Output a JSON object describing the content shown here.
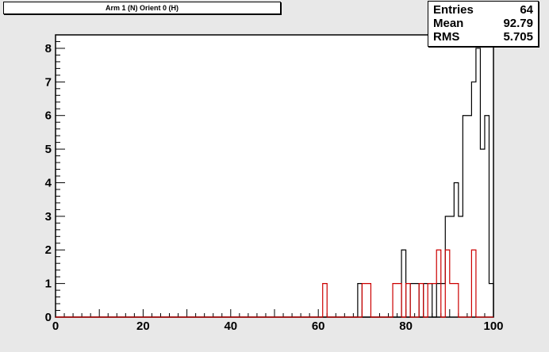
{
  "chart_data": {
    "type": "bar",
    "title": "Arm 1 (N) Orient 0 (H)",
    "xlim": [
      0,
      100
    ],
    "ylim": [
      0,
      8.4
    ],
    "x_ticks": [
      "0",
      "20",
      "40",
      "60",
      "80",
      "100"
    ],
    "y_ticks": [
      "0",
      "1",
      "2",
      "3",
      "4",
      "5",
      "6",
      "7",
      "8"
    ],
    "bin_width": 1,
    "series": [
      {
        "color": "#000000",
        "bins": [
          {
            "x": 69,
            "y": 1
          },
          {
            "x": 79,
            "y": 2
          },
          {
            "x": 81,
            "y": 1
          },
          {
            "x": 82,
            "y": 1
          },
          {
            "x": 84,
            "y": 1
          },
          {
            "x": 85,
            "y": 1
          },
          {
            "x": 87,
            "y": 1
          },
          {
            "x": 88,
            "y": 1
          },
          {
            "x": 89,
            "y": 3
          },
          {
            "x": 90,
            "y": 3
          },
          {
            "x": 91,
            "y": 4
          },
          {
            "x": 92,
            "y": 3
          },
          {
            "x": 93,
            "y": 6
          },
          {
            "x": 94,
            "y": 6
          },
          {
            "x": 95,
            "y": 7
          },
          {
            "x": 96,
            "y": 8
          },
          {
            "x": 97,
            "y": 5
          },
          {
            "x": 98,
            "y": 6
          },
          {
            "x": 99,
            "y": 1
          }
        ]
      },
      {
        "color": "#cc0000",
        "bins": [
          {
            "x": 61,
            "y": 1
          },
          {
            "x": 70,
            "y": 1
          },
          {
            "x": 71,
            "y": 1
          },
          {
            "x": 77,
            "y": 1
          },
          {
            "x": 78,
            "y": 1
          },
          {
            "x": 80,
            "y": 1
          },
          {
            "x": 83,
            "y": 1
          },
          {
            "x": 85,
            "y": 1
          },
          {
            "x": 86,
            "y": 1
          },
          {
            "x": 87,
            "y": 2
          },
          {
            "x": 89,
            "y": 2
          },
          {
            "x": 90,
            "y": 1
          },
          {
            "x": 91,
            "y": 1
          },
          {
            "x": 95,
            "y": 2
          }
        ]
      }
    ]
  },
  "stats": [
    {
      "label": "Entries",
      "value": "64"
    },
    {
      "label": "Mean",
      "value": "92.79"
    },
    {
      "label": "RMS",
      "value": "5.705"
    }
  ]
}
